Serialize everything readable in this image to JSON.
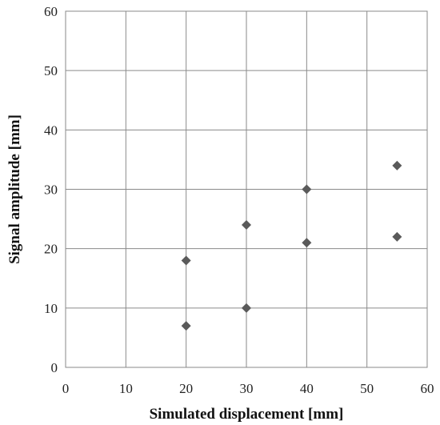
{
  "chart_data": {
    "type": "scatter",
    "title": "",
    "xlabel": "Simulated displacement [mm]",
    "ylabel": "Signal amplitude [mm]",
    "xlim": [
      0,
      60
    ],
    "ylim": [
      0,
      60
    ],
    "xticks": [
      0,
      10,
      20,
      30,
      40,
      50,
      60
    ],
    "yticks": [
      0,
      10,
      20,
      30,
      40,
      50,
      60
    ],
    "grid": true,
    "legend": "none",
    "marker": "diamond",
    "marker_color": "#5a5a5a",
    "series": [
      {
        "x": [
          20,
          20,
          30,
          30,
          40,
          40,
          55,
          55
        ],
        "y": [
          7,
          18,
          10,
          24,
          21,
          30,
          22,
          34
        ]
      }
    ]
  }
}
